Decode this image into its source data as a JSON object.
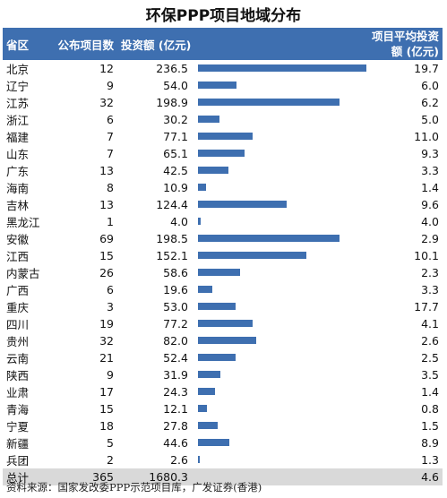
{
  "title": "环保PPP项目地域分布",
  "source": "资料来源：国家发改委PPP示范项目库，广发证券(香港)",
  "headers": {
    "province": "省区",
    "count": "公布项目数",
    "investment": "投资额 (亿元)",
    "avg": "项目平均投资额 (亿元)"
  },
  "colors": {
    "bar": "#3e6fb0",
    "header_bg": "#3e6fb0",
    "total_bg": "#d9d9d9"
  },
  "chart_data": {
    "type": "table",
    "columns": [
      "省区",
      "公布项目数",
      "投资额 (亿元)",
      "项目平均投资额 (亿元)"
    ],
    "rows": [
      {
        "province": "北京",
        "count": "12",
        "investment": 236.5,
        "avg": "19.7"
      },
      {
        "province": "辽宁",
        "count": "9",
        "investment": 54.0,
        "avg": "6.0"
      },
      {
        "province": "江苏",
        "count": "32",
        "investment": 198.9,
        "avg": "6.2"
      },
      {
        "province": "浙江",
        "count": "6",
        "investment": 30.2,
        "avg": "5.0"
      },
      {
        "province": "福建",
        "count": "7",
        "investment": 77.1,
        "avg": "11.0"
      },
      {
        "province": "山东",
        "count": "7",
        "investment": 65.1,
        "avg": "9.3"
      },
      {
        "province": "广东",
        "count": "13",
        "investment": 42.5,
        "avg": "3.3"
      },
      {
        "province": "海南",
        "count": "8",
        "investment": 10.9,
        "avg": "1.4"
      },
      {
        "province": "吉林",
        "count": "13",
        "investment": 124.4,
        "avg": "9.6"
      },
      {
        "province": "黑龙江",
        "count": "1",
        "investment": 4.0,
        "avg": "4.0"
      },
      {
        "province": "安徽",
        "count": "69",
        "investment": 198.5,
        "avg": "2.9"
      },
      {
        "province": "江西",
        "count": "15",
        "investment": 152.1,
        "avg": "10.1"
      },
      {
        "province": "内蒙古",
        "count": "26",
        "investment": 58.6,
        "avg": "2.3"
      },
      {
        "province": "广西",
        "count": "6",
        "investment": 19.6,
        "avg": "3.3"
      },
      {
        "province": "重庆",
        "count": "3",
        "investment": 53.0,
        "avg": "17.7"
      },
      {
        "province": "四川",
        "count": "19",
        "investment": 77.2,
        "avg": "4.1"
      },
      {
        "province": "贵州",
        "count": "32",
        "investment": 82.0,
        "avg": "2.6"
      },
      {
        "province": "云南",
        "count": "21",
        "investment": 52.4,
        "avg": "2.5"
      },
      {
        "province": "陕西",
        "count": "9",
        "investment": 31.9,
        "avg": "3.5"
      },
      {
        "province": "业肃",
        "count": "17",
        "investment": 24.3,
        "avg": "1.4"
      },
      {
        "province": "青海",
        "count": "15",
        "investment": 12.1,
        "avg": "0.8"
      },
      {
        "province": "宁夏",
        "count": "18",
        "investment": 27.8,
        "avg": "1.5"
      },
      {
        "province": "新疆",
        "count": "5",
        "investment": 44.6,
        "avg": "8.9"
      },
      {
        "province": "兵团",
        "count": "2",
        "investment": 2.6,
        "avg": "1.3"
      }
    ],
    "total": {
      "province": "总计",
      "count": "365",
      "investment": "1680.3",
      "avg": "4.6"
    },
    "bar_max": 236.5
  }
}
